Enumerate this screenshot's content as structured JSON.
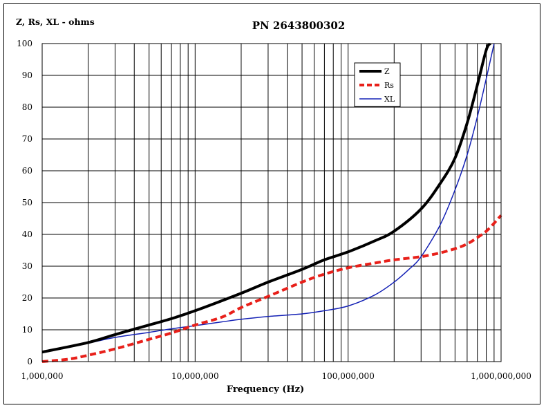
{
  "chart_data": {
    "type": "line",
    "title": "PN 2643800302",
    "ylabel": "Z, Rs, XL - ohms",
    "xlabel": "Frequency (Hz)",
    "xscale": "log",
    "xlim": [
      1000000,
      1000000000
    ],
    "ylim": [
      0,
      100
    ],
    "grid": true,
    "legend_position": "top-right",
    "x_tick_labels": [
      {
        "value": 1000000,
        "label": "1,000,000"
      },
      {
        "value": 10000000,
        "label": "10,000,000"
      },
      {
        "value": 100000000,
        "label": "100,000,000"
      },
      {
        "value": 1000000000,
        "label": "1,000,000,000"
      }
    ],
    "y_ticks": [
      0,
      10,
      20,
      30,
      40,
      50,
      60,
      70,
      80,
      90,
      100
    ],
    "series": [
      {
        "name": "Z",
        "color": "#000000",
        "style": "solid-thick",
        "x": [
          1000000,
          2000000,
          3000000,
          5000000,
          7000000,
          10000000,
          20000000,
          30000000,
          50000000,
          70000000,
          100000000,
          150000000,
          200000000,
          300000000,
          400000000,
          500000000,
          600000000,
          700000000,
          800000000,
          850000000
        ],
        "y": [
          3,
          6,
          8.5,
          11.5,
          13.5,
          16,
          21.5,
          25,
          29,
          32,
          34.5,
          38,
          41,
          48,
          56,
          64,
          75,
          87,
          98,
          100
        ]
      },
      {
        "name": "Rs",
        "color": "#e8201a",
        "style": "dashed",
        "x": [
          1000000,
          1500000,
          2000000,
          3000000,
          5000000,
          7000000,
          10000000,
          15000000,
          20000000,
          30000000,
          50000000,
          70000000,
          100000000,
          150000000,
          200000000,
          300000000,
          400000000,
          500000000,
          600000000,
          700000000,
          800000000,
          900000000,
          1000000000
        ],
        "y": [
          0,
          0.8,
          2,
          4,
          7,
          9,
          11.5,
          14,
          17,
          20.5,
          25,
          27.5,
          29.5,
          31,
          32,
          33,
          34.2,
          35.5,
          37,
          39,
          41,
          43.5,
          46
        ]
      },
      {
        "name": "XL",
        "color": "#1421b5",
        "style": "solid-thin",
        "x": [
          1000000,
          2000000,
          3000000,
          5000000,
          7000000,
          10000000,
          15000000,
          20000000,
          30000000,
          50000000,
          70000000,
          100000000,
          150000000,
          200000000,
          250000000,
          300000000,
          400000000,
          500000000,
          600000000,
          700000000,
          800000000,
          900000000
        ],
        "y": [
          2.8,
          5.8,
          7.6,
          9.2,
          10.3,
          11.3,
          12.5,
          13.3,
          14.2,
          15,
          16,
          17.5,
          21,
          25,
          29,
          33,
          43,
          54,
          65,
          77,
          89,
          100
        ]
      }
    ]
  }
}
